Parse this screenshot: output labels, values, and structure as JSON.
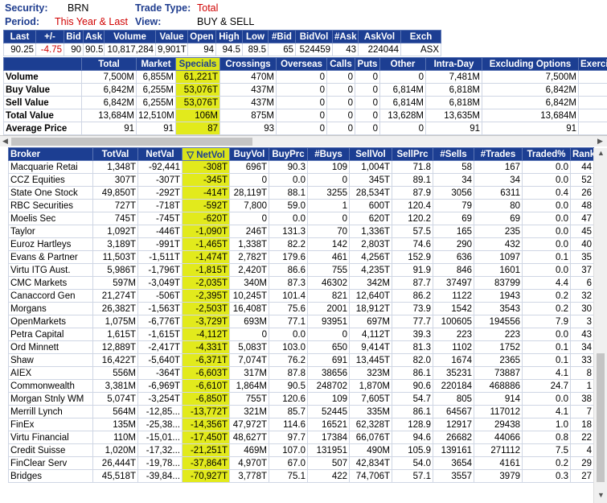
{
  "header": {
    "security_label": "Security:",
    "security": "BRN",
    "trade_type_label": "Trade Type:",
    "trade_type": "Total",
    "period_label": "Period:",
    "period": "This Year & Last",
    "view_label": "View:",
    "view": "BUY & SELL"
  },
  "quote": {
    "columns": [
      "Last",
      "+/-",
      "Bid",
      "Ask",
      "Volume",
      "Value",
      "Open",
      "High",
      "Low",
      "#Bid",
      "BidVol",
      "#Ask",
      "AskVol",
      "Exch"
    ],
    "values": [
      "90.25",
      "-4.75",
      "90",
      "90.5",
      "10,817,284",
      "9,901T",
      "94",
      "94.5",
      "89.5",
      "65",
      "524459",
      "43",
      "224044",
      "ASX"
    ]
  },
  "summary": {
    "columns": [
      "",
      "Total",
      "Market",
      "Specials",
      "Crossings",
      "Overseas",
      "Calls",
      "Puts",
      "Other",
      "Intra-Day",
      "Excluding Options",
      "Exerci"
    ],
    "rows": [
      [
        "Volume",
        "7,500M",
        "6,855M",
        "61,221T",
        "470M",
        "0",
        "0",
        "0",
        "0",
        "7,481M",
        "7,500M",
        ""
      ],
      [
        "Buy Value",
        "6,842M",
        "6,255M",
        "53,076T",
        "437M",
        "0",
        "0",
        "0",
        "6,814M",
        "6,818M",
        "6,842M",
        ""
      ],
      [
        "Sell Value",
        "6,842M",
        "6,255M",
        "53,076T",
        "437M",
        "0",
        "0",
        "0",
        "6,814M",
        "6,818M",
        "6,842M",
        ""
      ],
      [
        "Total Value",
        "13,684M",
        "12,510M",
        "106M",
        "875M",
        "0",
        "0",
        "0",
        "13,628M",
        "13,635M",
        "13,684M",
        ""
      ],
      [
        "Average Price",
        "91",
        "91",
        "87",
        "93",
        "0",
        "0",
        "0",
        "0",
        "91",
        "91",
        ""
      ]
    ]
  },
  "brokers": {
    "columns": [
      "Broker",
      "TotVal",
      "NetVal",
      "▽ NetVol",
      "BuyVol",
      "BuyPrc",
      "#Buys",
      "SellVol",
      "SellPrc",
      "#Sells",
      "#Trades",
      "Traded%",
      "Rank"
    ],
    "rows": [
      [
        "Macquarie Retai",
        "1,348T",
        "-92,441",
        "-308T",
        "696T",
        "90.3",
        "109",
        "1,004T",
        "71.8",
        "58",
        "167",
        "0.0",
        "44"
      ],
      [
        "CCZ Equities",
        "307T",
        "-307T",
        "-345T",
        "0",
        "0.0",
        "0",
        "345T",
        "89.1",
        "34",
        "34",
        "0.0",
        "52"
      ],
      [
        "State One Stock",
        "49,850T",
        "-292T",
        "-414T",
        "28,119T",
        "88.1",
        "3255",
        "28,534T",
        "87.9",
        "3056",
        "6311",
        "0.4",
        "26"
      ],
      [
        "RBC Securities",
        "727T",
        "-718T",
        "-592T",
        "7,800",
        "59.0",
        "1",
        "600T",
        "120.4",
        "79",
        "80",
        "0.0",
        "48"
      ],
      [
        "Moelis Sec",
        "745T",
        "-745T",
        "-620T",
        "0",
        "0.0",
        "0",
        "620T",
        "120.2",
        "69",
        "69",
        "0.0",
        "47"
      ],
      [
        "Taylor",
        "1,092T",
        "-446T",
        "-1,090T",
        "246T",
        "131.3",
        "70",
        "1,336T",
        "57.5",
        "165",
        "235",
        "0.0",
        "45"
      ],
      [
        "Euroz Hartleys",
        "3,189T",
        "-991T",
        "-1,465T",
        "1,338T",
        "82.2",
        "142",
        "2,803T",
        "74.6",
        "290",
        "432",
        "0.0",
        "40"
      ],
      [
        "Evans & Partner",
        "11,503T",
        "-1,511T",
        "-1,474T",
        "2,782T",
        "179.6",
        "461",
        "4,256T",
        "152.9",
        "636",
        "1097",
        "0.1",
        "35"
      ],
      [
        "Virtu ITG Aust.",
        "5,986T",
        "-1,796T",
        "-1,815T",
        "2,420T",
        "86.6",
        "755",
        "4,235T",
        "91.9",
        "846",
        "1601",
        "0.0",
        "37"
      ],
      [
        "CMC Markets",
        "597M",
        "-3,049T",
        "-2,035T",
        "340M",
        "87.3",
        "46302",
        "342M",
        "87.7",
        "37497",
        "83799",
        "4.4",
        "6"
      ],
      [
        "Canaccord Gen",
        "21,274T",
        "-506T",
        "-2,395T",
        "10,245T",
        "101.4",
        "821",
        "12,640T",
        "86.2",
        "1122",
        "1943",
        "0.2",
        "32"
      ],
      [
        "Morgans",
        "26,382T",
        "-1,563T",
        "-2,503T",
        "16,408T",
        "75.6",
        "2001",
        "18,912T",
        "73.9",
        "1542",
        "3543",
        "0.2",
        "30"
      ],
      [
        "OpenMarkets",
        "1,075M",
        "-6,776T",
        "-3,729T",
        "693M",
        "77.1",
        "93951",
        "697M",
        "77.7",
        "100605",
        "194556",
        "7.9",
        "3"
      ],
      [
        "Petra Capital",
        "1,615T",
        "-1,615T",
        "-4,112T",
        "0",
        "0.0",
        "0",
        "4,112T",
        "39.3",
        "223",
        "223",
        "0.0",
        "43"
      ],
      [
        "Ord Minnett",
        "12,889T",
        "-2,417T",
        "-4,331T",
        "5,083T",
        "103.0",
        "650",
        "9,414T",
        "81.3",
        "1102",
        "1752",
        "0.1",
        "34"
      ],
      [
        "Shaw",
        "16,422T",
        "-5,640T",
        "-6,371T",
        "7,074T",
        "76.2",
        "691",
        "13,445T",
        "82.0",
        "1674",
        "2365",
        "0.1",
        "33"
      ],
      [
        "AIEX",
        "556M",
        "-364T",
        "-6,603T",
        "317M",
        "87.8",
        "38656",
        "323M",
        "86.1",
        "35231",
        "73887",
        "4.1",
        "8"
      ],
      [
        "Commonwealth",
        "3,381M",
        "-6,969T",
        "-6,610T",
        "1,864M",
        "90.5",
        "248702",
        "1,870M",
        "90.6",
        "220184",
        "468886",
        "24.7",
        "1"
      ],
      [
        "Morgan Stnly WM",
        "5,074T",
        "-3,254T",
        "-6,850T",
        "755T",
        "120.6",
        "109",
        "7,605T",
        "54.7",
        "805",
        "914",
        "0.0",
        "38"
      ],
      [
        "Merrill Lynch",
        "564M",
        "-12,85...",
        "-13,772T",
        "321M",
        "85.7",
        "52445",
        "335M",
        "86.1",
        "64567",
        "117012",
        "4.1",
        "7"
      ],
      [
        "FinEx",
        "135M",
        "-25,38...",
        "-14,356T",
        "47,972T",
        "114.6",
        "16521",
        "62,328T",
        "128.9",
        "12917",
        "29438",
        "1.0",
        "18"
      ],
      [
        "Virtu Financial",
        "110M",
        "-15,01...",
        "-17,450T",
        "48,627T",
        "97.7",
        "17384",
        "66,076T",
        "94.6",
        "26682",
        "44066",
        "0.8",
        "22"
      ],
      [
        "Credit Suisse",
        "1,020M",
        "-17,32...",
        "-21,251T",
        "469M",
        "107.0",
        "131951",
        "490M",
        "105.9",
        "139161",
        "271112",
        "7.5",
        "4"
      ],
      [
        "FinClear Serv",
        "26,444T",
        "-19,78...",
        "-37,864T",
        "4,970T",
        "67.0",
        "507",
        "42,834T",
        "54.0",
        "3654",
        "4161",
        "0.2",
        "29"
      ],
      [
        "Bridges",
        "45,518T",
        "-39,84...",
        "-70,927T",
        "3,778T",
        "75.1",
        "422",
        "74,706T",
        "57.1",
        "3557",
        "3979",
        "0.3",
        "27"
      ]
    ]
  },
  "colors": {
    "header_bg": "#1c3e92",
    "highlight": "#e2ea1c",
    "negative": "#d00000"
  }
}
